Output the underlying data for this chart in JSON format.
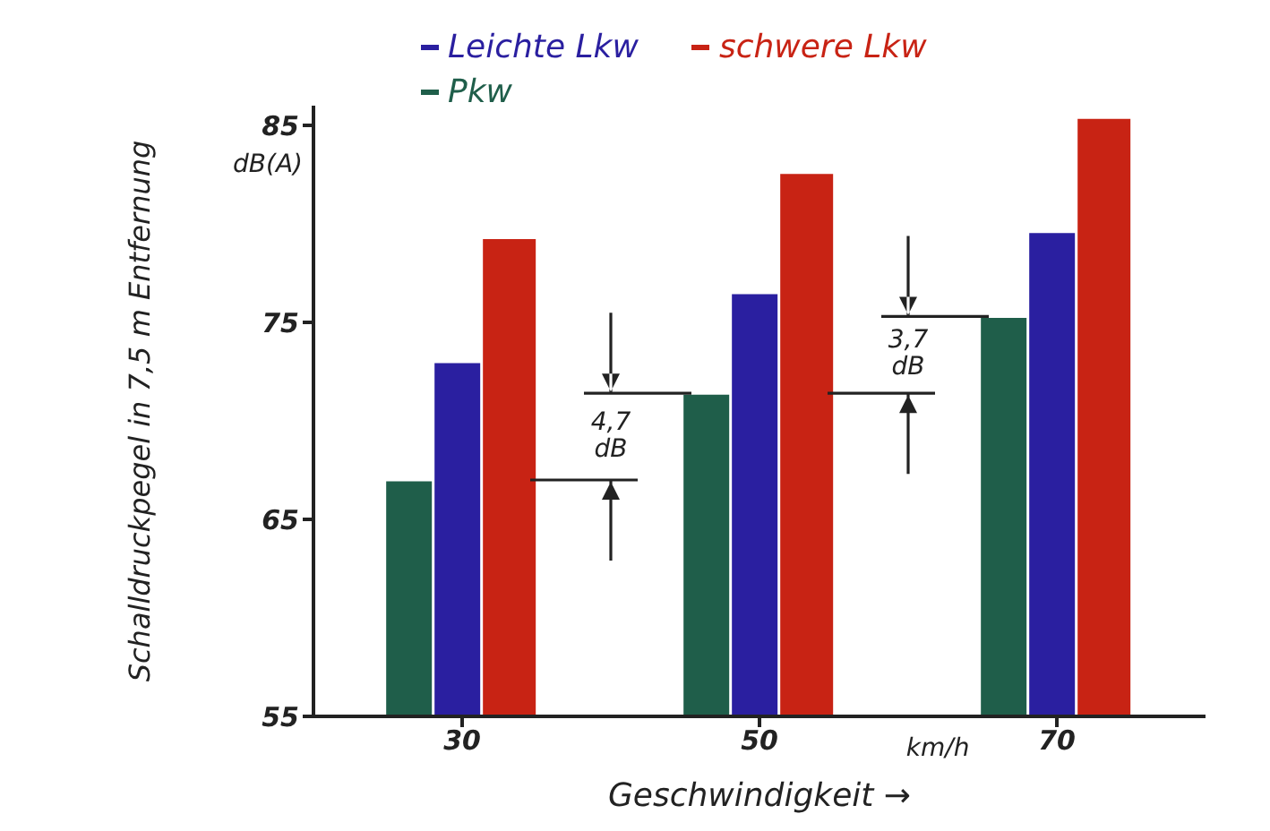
{
  "chart_data": {
    "type": "bar",
    "ylabel": "Schalldruckpegel in 7,5 m Entfernung",
    "xlabel": "Geschwindigkeit →",
    "categories": [
      "30",
      "50",
      "70"
    ],
    "series": [
      {
        "name": "Pkw",
        "color": "#1f5e4a",
        "values": [
          67,
          71.4,
          75.3
        ]
      },
      {
        "name": "Leichte Lkw",
        "color": "#2a1fa0",
        "values": [
          73,
          76.5,
          79.6
        ]
      },
      {
        "name": "schwere Lkw",
        "color": "#c82314",
        "values": [
          79.3,
          82.6,
          85.4
        ]
      }
    ],
    "ylim": [
      55,
      86
    ],
    "yticks": [
      55,
      65,
      75,
      85
    ],
    "grid": false,
    "legend": "top",
    "annotations": [
      "dB(A)",
      "km/h",
      "4,7 dB",
      "3,7 dB"
    ]
  }
}
